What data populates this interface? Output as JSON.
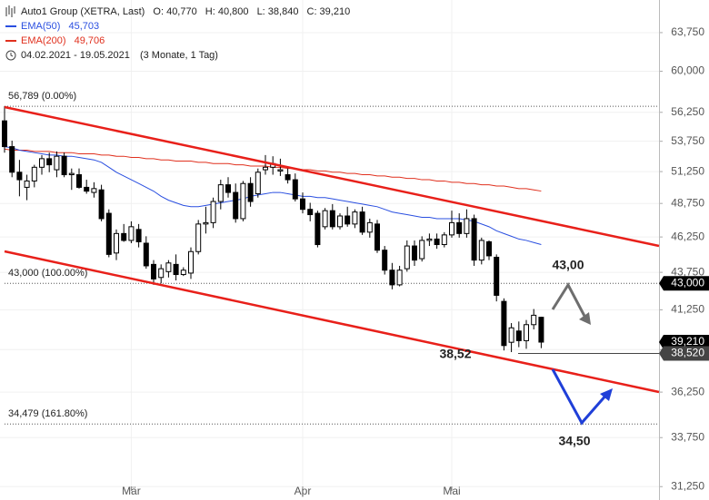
{
  "chart_data": {
    "type": "candlestick",
    "title": "Auto1 Group (XETRA, Last)",
    "ohlc_header": [
      "O: 40,770",
      "H: 40,800",
      "L: 38,840",
      "C: 39,210"
    ],
    "date_range": "04.02.2021 - 19.05.2021",
    "period": "(3 Monate, 1 Tag)",
    "log": true,
    "grid": true,
    "ylim": [
      30.6,
      67.1
    ],
    "yticks": [
      {
        "value": 31.25,
        "label": "31,250"
      },
      {
        "value": 33.75,
        "label": "33,750"
      },
      {
        "value": 36.25,
        "label": "36,250"
      },
      {
        "value": 38.75,
        "label": "38,750"
      },
      {
        "value": 41.25,
        "label": "41,250"
      },
      {
        "value": 43.75,
        "label": "43,750"
      },
      {
        "value": 46.25,
        "label": "46,250"
      },
      {
        "value": 48.75,
        "label": "48,750"
      },
      {
        "value": 51.25,
        "label": "51,250"
      },
      {
        "value": 53.75,
        "label": "53,750"
      },
      {
        "value": 56.25,
        "label": "56,250"
      },
      {
        "value": 60,
        "label": "60,000"
      },
      {
        "value": 63.75,
        "label": "63,750"
      }
    ],
    "categories": [
      null,
      null,
      null,
      null,
      null,
      null,
      null,
      null,
      null,
      null,
      null,
      null,
      null,
      null,
      null,
      null,
      null,
      "Mär",
      null,
      null,
      null,
      null,
      null,
      null,
      null,
      null,
      null,
      null,
      null,
      null,
      null,
      null,
      null,
      null,
      null,
      null,
      null,
      null,
      null,
      null,
      "Apr",
      null,
      null,
      null,
      null,
      null,
      null,
      null,
      null,
      null,
      null,
      null,
      null,
      null,
      null,
      null,
      null,
      null,
      null,
      null,
      "Mai",
      null,
      null,
      null,
      null,
      null,
      null,
      null,
      null,
      null,
      null,
      null,
      null
    ],
    "open": [
      55.5,
      53.3,
      51.2,
      50.0,
      50.5,
      51.6,
      52.3,
      51.4,
      52.5,
      51.0,
      51.0,
      50.0,
      49.6,
      49.8,
      48.0,
      45.1,
      46.5,
      46.0,
      46.8,
      45.8,
      44.3,
      43.4,
      43.8,
      44.3,
      43.6,
      43.7,
      45.2,
      47.2,
      47.3,
      48.9,
      50.2,
      49.6,
      47.6,
      50.3,
      49.5,
      51.4,
      51.6,
      51.3,
      51.0,
      50.6,
      49.1,
      48.3,
      48.0,
      47.0,
      48.2,
      47.0,
      47.8,
      47.2,
      48.1,
      46.6,
      47.2,
      45.3,
      43.9,
      42.9,
      44.0,
      45.6,
      44.7,
      46.0,
      46.1,
      45.7,
      46.4,
      47.3,
      46.5,
      47.6,
      44.6,
      45.9,
      44.8,
      41.8,
      39.2,
      39.9,
      39.3,
      40.3,
      40.77
    ],
    "high": [
      56.789,
      53.8,
      52.2,
      51.0,
      51.8,
      52.6,
      52.8,
      52.9,
      52.8,
      51.5,
      51.5,
      50.6,
      50.4,
      50.2,
      48.3,
      46.8,
      47.2,
      47.4,
      47.2,
      46.3,
      44.6,
      44.3,
      44.6,
      45.0,
      44.1,
      45.5,
      47.5,
      48.5,
      49.2,
      50.6,
      50.8,
      50.3,
      50.5,
      50.8,
      51.5,
      52.6,
      52.5,
      52.3,
      51.5,
      51.1,
      49.6,
      48.8,
      48.2,
      48.4,
      48.7,
      48.0,
      48.5,
      48.3,
      48.5,
      47.6,
      47.5,
      45.6,
      44.4,
      44.2,
      46.0,
      46.0,
      46.3,
      46.5,
      46.5,
      46.6,
      48.2,
      48.0,
      48.3,
      47.9,
      46.2,
      46.0,
      45.0,
      42.0,
      40.4,
      40.5,
      40.6,
      41.3,
      40.8
    ],
    "low": [
      52.8,
      50.8,
      49.3,
      49.0,
      50.0,
      51.0,
      51.2,
      50.8,
      50.8,
      49.8,
      49.9,
      49.5,
      49.2,
      47.4,
      44.8,
      44.6,
      45.9,
      45.8,
      45.5,
      44.0,
      42.9,
      43.0,
      43.4,
      43.2,
      43.5,
      43.3,
      45.0,
      46.5,
      46.9,
      48.3,
      49.2,
      47.3,
      47.4,
      48.5,
      49.2,
      51.0,
      51.0,
      50.9,
      50.3,
      48.9,
      48.0,
      47.4,
      45.5,
      46.8,
      46.8,
      46.8,
      47.0,
      46.9,
      46.4,
      46.2,
      45.1,
      43.6,
      42.6,
      42.8,
      43.8,
      44.2,
      44.5,
      45.6,
      45.4,
      45.5,
      46.2,
      46.2,
      46.2,
      44.2,
      44.3,
      44.6,
      41.8,
      38.7,
      38.6,
      38.9,
      38.8,
      40.0,
      38.84
    ],
    "close": [
      53.3,
      51.2,
      50.6,
      50.5,
      51.6,
      52.3,
      51.8,
      52.5,
      51.0,
      51.1,
      50.0,
      49.7,
      49.9,
      47.6,
      45.0,
      46.5,
      46.0,
      47.0,
      45.9,
      44.2,
      43.3,
      44.0,
      44.4,
      43.6,
      43.9,
      45.2,
      47.2,
      47.3,
      48.9,
      50.2,
      49.6,
      47.6,
      50.3,
      48.9,
      51.2,
      51.6,
      51.9,
      51.4,
      50.6,
      49.1,
      48.3,
      47.9,
      45.7,
      48.2,
      47.0,
      47.8,
      47.2,
      48.1,
      46.6,
      47.3,
      45.3,
      43.9,
      42.9,
      43.9,
      45.6,
      44.6,
      46.0,
      46.1,
      45.7,
      46.4,
      47.3,
      46.5,
      47.6,
      44.6,
      46.0,
      44.9,
      42.2,
      39.0,
      40.1,
      39.3,
      40.3,
      40.9,
      39.21
    ],
    "overlays": [
      {
        "name": "EMA(50)",
        "value_label": "45,703",
        "color": "#2a4fe0",
        "values": [
          53.3,
          53.2,
          53.0,
          52.9,
          52.8,
          52.7,
          52.6,
          52.6,
          52.5,
          52.5,
          52.4,
          52.3,
          52.2,
          52.0,
          51.6,
          51.2,
          50.9,
          50.6,
          50.3,
          50.0,
          49.7,
          49.3,
          49.0,
          48.8,
          48.6,
          48.5,
          48.5,
          48.6,
          48.7,
          48.8,
          48.9,
          49.0,
          49.1,
          49.3,
          49.4,
          49.5,
          49.6,
          49.6,
          49.5,
          49.4,
          49.3,
          49.3,
          49.2,
          49.2,
          49.1,
          49.0,
          48.9,
          48.8,
          48.7,
          48.6,
          48.5,
          48.3,
          48.1,
          48.0,
          47.9,
          47.8,
          47.7,
          47.7,
          47.6,
          47.6,
          47.6,
          47.6,
          47.5,
          47.4,
          47.2,
          47.0,
          46.7,
          46.5,
          46.3,
          46.1,
          46.0,
          45.85,
          45.703
        ]
      },
      {
        "name": "EMA(200)",
        "value_label": "49,706",
        "color": "#e0301e",
        "values": [
          53.1,
          53.0,
          53.0,
          53.0,
          52.9,
          52.9,
          52.9,
          52.8,
          52.8,
          52.8,
          52.7,
          52.7,
          52.7,
          52.6,
          52.6,
          52.5,
          52.5,
          52.4,
          52.4,
          52.3,
          52.3,
          52.2,
          52.2,
          52.1,
          52.1,
          52.1,
          52.0,
          52.0,
          51.9,
          51.9,
          51.9,
          51.8,
          51.8,
          51.7,
          51.7,
          51.7,
          51.6,
          51.6,
          51.5,
          51.5,
          51.4,
          51.4,
          51.3,
          51.3,
          51.2,
          51.2,
          51.1,
          51.1,
          51.0,
          51.0,
          50.9,
          50.9,
          50.8,
          50.8,
          50.7,
          50.7,
          50.6,
          50.6,
          50.5,
          50.5,
          50.4,
          50.4,
          50.3,
          50.3,
          50.2,
          50.2,
          50.1,
          50.1,
          50.0,
          49.9,
          49.9,
          49.8,
          49.706
        ]
      }
    ],
    "levels": [
      {
        "value": 56.789,
        "label": "56,789 (0.00%)"
      },
      {
        "value": 43.0,
        "label": "43,000 (100.00%)"
      },
      {
        "value": 34.479,
        "label": "34,479 (161.80%)"
      }
    ],
    "price_tags": [
      {
        "value": 43.0,
        "label": "43,000",
        "color": "#000000"
      },
      {
        "value": 39.21,
        "label": "39,210",
        "color": "#000000"
      },
      {
        "value": 38.52,
        "label": "38,520",
        "color": "#444444"
      }
    ],
    "annotations": [
      {
        "text": "43,00",
        "color": "#6e6e6e"
      },
      {
        "text": "38,52",
        "color": "#6e6e6e"
      },
      {
        "text": "34,50",
        "color": "#1f3fd8"
      }
    ]
  }
}
